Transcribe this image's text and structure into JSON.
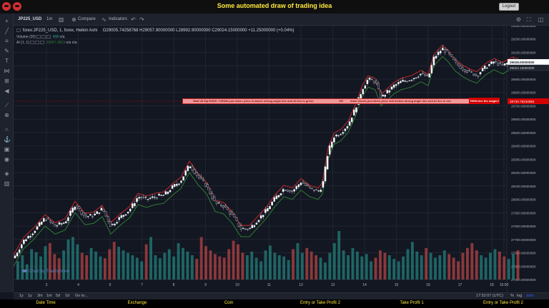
{
  "header": {
    "title": "Some automated draw of trading idea",
    "logout_label": "Logout"
  },
  "toolbar": {
    "symbol": "JP225_USD",
    "interval": "1m",
    "compare_label": "Compare",
    "indicators_label": "Indicators"
  },
  "legend": {
    "main": "forex:JP225_USD, 1, forex, Heikin Ashi",
    "ohlc": "O29005.74258768  H29057.90000000  L28992.90000000  C29024.15000000  +11.25000000 (+0.04%)",
    "volume_label": "Volume (20)",
    "volume_value": "408",
    "volume_na": "n/a",
    "ai_label": "AI (1, 1)",
    "ai_value": "28957.2803",
    "ai_na1": "n/a",
    "ai_na2": "n/a"
  },
  "annotation": {
    "part1": "Wait till flip ENDS  !   DRAW just when: price is above strong angle line and AI line is green",
    "part2": "OR",
    "part3": "draw shorts just when price still bellow strong angle line and AI line is red",
    "part4": "THEN live the magic!!",
    "price_label": "28730.78234984"
  },
  "brand": "Chart by TradingView",
  "price_axis": {
    "ticks": [
      "29300.00000000",
      "29200.00000000",
      "29100.00000000",
      "29000.00000000",
      "28900.00000000",
      "28800.00000000",
      "28700.00000000",
      "28600.00000000",
      "28500.00000000",
      "28400.00000000",
      "28300.00000000",
      "28200.00000000",
      "28100.00000000",
      "28000.00000000",
      "27900.00000000",
      "27800.00000000",
      "27700.00000000",
      "27600.00000000",
      "27500.00000000",
      "27400.00000000"
    ],
    "current_price": "29028.00000000",
    "tag2": "29024.15000000"
  },
  "time_axis": [
    "3",
    "4",
    "5",
    "7",
    "8",
    "9",
    "10",
    "11",
    "12",
    "13",
    "14",
    "15",
    "16",
    "17",
    "18",
    "19",
    "15:00"
  ],
  "bottom_bar": {
    "ranges": [
      "1y",
      "1y",
      "3m",
      "1m",
      "5d",
      "1d",
      "Go to..."
    ],
    "clock": "17:52:07 (UTC)",
    "pct": "%",
    "log": "log",
    "auto": "auto"
  },
  "footer": {
    "labels": [
      "Date Time",
      "Exchange",
      "Coin",
      "Entry or Take Profit 2",
      "Take Profit 1",
      "Entry or Take Profit 2"
    ]
  },
  "colors": {
    "background": "#131722",
    "up": "#ffffff",
    "down": "#131722",
    "wick": "#b2b5be",
    "line_red": "#c62828",
    "line_green": "#2e7d32",
    "vol_up": "#26a69a",
    "vol_down": "#ef5350",
    "title": "#ffeb3b"
  },
  "chart_data": {
    "type": "line",
    "series_note_none": "",
    "ylim": [
      27400,
      29300
    ],
    "price_path": [
      [
        0,
        27560
      ],
      [
        14,
        27690
      ],
      [
        28,
        27760
      ],
      [
        44,
        27860
      ],
      [
        58,
        27800
      ],
      [
        72,
        27830
      ],
      [
        86,
        27960
      ],
      [
        100,
        27870
      ],
      [
        112,
        27880
      ],
      [
        124,
        27930
      ],
      [
        136,
        27800
      ],
      [
        150,
        27870
      ],
      [
        162,
        27920
      ],
      [
        174,
        28020
      ],
      [
        186,
        28000
      ],
      [
        198,
        28020
      ],
      [
        210,
        28030
      ],
      [
        222,
        28090
      ],
      [
        234,
        28140
      ],
      [
        246,
        28260
      ],
      [
        258,
        28170
      ],
      [
        270,
        28100
      ],
      [
        282,
        27970
      ],
      [
        294,
        27950
      ],
      [
        306,
        27880
      ],
      [
        318,
        27780
      ],
      [
        330,
        27780
      ],
      [
        342,
        27850
      ],
      [
        354,
        27920
      ],
      [
        366,
        28010
      ],
      [
        378,
        28080
      ],
      [
        390,
        28060
      ],
      [
        402,
        28130
      ],
      [
        414,
        28080
      ],
      [
        426,
        28060
      ],
      [
        432,
        28100
      ],
      [
        440,
        28360
      ],
      [
        448,
        28470
      ],
      [
        458,
        28500
      ],
      [
        468,
        28560
      ],
      [
        478,
        28680
      ],
      [
        488,
        28830
      ],
      [
        496,
        28900
      ],
      [
        506,
        28880
      ],
      [
        514,
        28760
      ],
      [
        522,
        28800
      ],
      [
        532,
        28850
      ],
      [
        542,
        28880
      ],
      [
        556,
        28900
      ],
      [
        570,
        28940
      ],
      [
        580,
        28910
      ],
      [
        588,
        29060
      ],
      [
        600,
        29130
      ],
      [
        608,
        29090
      ],
      [
        618,
        29020
      ],
      [
        628,
        28980
      ],
      [
        638,
        28950
      ],
      [
        648,
        28930
      ],
      [
        660,
        28990
      ],
      [
        672,
        29030
      ],
      [
        684,
        29000
      ],
      [
        698,
        29040
      ],
      [
        706,
        29028
      ]
    ],
    "volume": [
      30,
      40,
      25,
      50,
      45,
      38,
      55,
      60,
      42,
      35,
      48,
      66,
      70,
      58,
      44,
      40,
      52,
      46,
      38,
      35,
      50,
      62,
      54,
      48,
      44,
      40,
      36,
      30,
      58,
      70,
      40,
      35,
      44,
      50,
      38,
      60,
      52,
      46,
      40,
      34,
      70,
      55,
      48,
      42,
      38,
      36,
      50,
      64,
      58,
      44,
      40,
      46,
      36,
      30,
      48,
      56,
      44,
      40,
      38,
      32,
      50,
      60,
      44,
      52,
      46,
      40,
      36,
      28,
      44,
      60,
      80,
      48,
      40,
      52,
      46,
      38,
      42,
      30,
      36,
      48,
      44,
      40,
      34,
      30,
      38,
      50,
      62,
      46,
      40,
      52,
      44,
      36,
      40,
      48,
      42,
      36,
      30,
      44,
      52,
      60,
      48,
      40,
      36,
      44,
      50,
      46,
      38,
      34,
      42,
      48
    ]
  }
}
